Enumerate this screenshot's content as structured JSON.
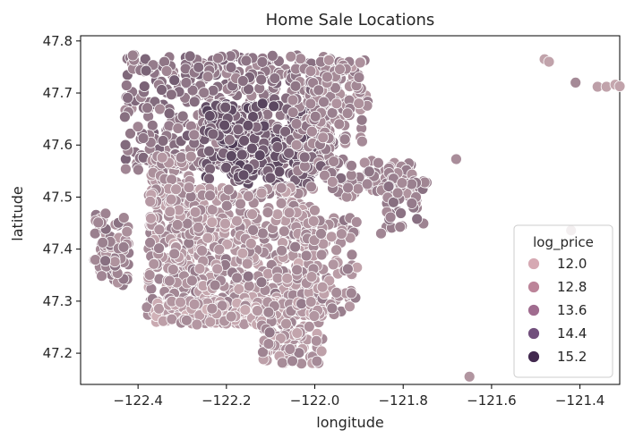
{
  "chart_data": {
    "type": "scatter",
    "title": "Home Sale Locations",
    "xlabel": "longitude",
    "ylabel": "latitude",
    "xlim": [
      -122.53,
      -121.31
    ],
    "ylim": [
      47.14,
      47.81
    ],
    "x_ticks": [
      -122.4,
      -122.2,
      -122.0,
      -121.8,
      -121.6,
      -121.4
    ],
    "x_tick_labels": [
      "−122.4",
      "−122.2",
      "−122.0",
      "−121.8",
      "−121.6",
      "−121.4"
    ],
    "y_ticks": [
      47.2,
      47.3,
      47.4,
      47.5,
      47.6,
      47.7,
      47.8
    ],
    "y_tick_labels": [
      "47.2",
      "47.3",
      "47.4",
      "47.5",
      "47.6",
      "47.7",
      "47.8"
    ],
    "grid": false,
    "legend": {
      "title": "log_price",
      "placement": "lower-right",
      "entries": [
        {
          "label": "12.0",
          "color": "#d6a9b3"
        },
        {
          "label": "12.8",
          "color": "#bc8499"
        },
        {
          "label": "13.6",
          "color": "#a06c8f"
        },
        {
          "label": "14.4",
          "color": "#714f7c"
        },
        {
          "label": "15.2",
          "color": "#42294f"
        }
      ]
    },
    "hue_range": [
      11.2,
      15.9
    ],
    "colors": {
      "hue_low": "#e9c7c9",
      "hue_high": "#2d1e3e"
    },
    "point_clusters": [
      {
        "lon_min": -122.43,
        "lon_max": -121.95,
        "lat_min": 47.55,
        "lat_max": 47.775,
        "count": 520,
        "hue_mean": 13.45
      },
      {
        "lon_min": -122.25,
        "lon_max": -122.0,
        "lat_min": 47.52,
        "lat_max": 47.68,
        "count": 240,
        "hue_mean": 14.3
      },
      {
        "lon_min": -122.05,
        "lon_max": -121.93,
        "lat_min": 47.55,
        "lat_max": 47.76,
        "count": 90,
        "hue_mean": 13.3
      },
      {
        "lon_min": -122.01,
        "lon_max": -121.88,
        "lat_min": 47.6,
        "lat_max": 47.77,
        "count": 90,
        "hue_mean": 13.0
      },
      {
        "lon_min": -121.98,
        "lon_max": -121.78,
        "lat_min": 47.5,
        "lat_max": 47.57,
        "count": 80,
        "hue_mean": 13.1
      },
      {
        "lon_min": -122.37,
        "lon_max": -122.28,
        "lat_min": 47.48,
        "lat_max": 47.58,
        "count": 80,
        "hue_mean": 12.9
      },
      {
        "lon_min": -122.38,
        "lon_max": -122.0,
        "lat_min": 47.27,
        "lat_max": 47.52,
        "count": 720,
        "hue_mean": 12.7
      },
      {
        "lon_min": -122.36,
        "lon_max": -122.06,
        "lat_min": 47.255,
        "lat_max": 47.3,
        "count": 150,
        "hue_mean": 12.4
      },
      {
        "lon_min": -122.12,
        "lon_max": -121.98,
        "lat_min": 47.18,
        "lat_max": 47.3,
        "count": 110,
        "hue_mean": 12.6
      },
      {
        "lon_min": -122.02,
        "lon_max": -121.9,
        "lat_min": 47.27,
        "lat_max": 47.46,
        "count": 90,
        "hue_mean": 12.8
      },
      {
        "lon_min": -122.5,
        "lon_max": -122.42,
        "lat_min": 47.33,
        "lat_max": 47.47,
        "count": 80,
        "hue_mean": 13.1
      },
      {
        "lon_min": -121.85,
        "lon_max": -121.74,
        "lat_min": 47.44,
        "lat_max": 47.54,
        "count": 40,
        "hue_mean": 13.3
      }
    ],
    "outlier_points": [
      {
        "lon": -121.48,
        "lat": 47.765,
        "hue": 12.2
      },
      {
        "lon": -121.47,
        "lat": 47.76,
        "hue": 12.2
      },
      {
        "lon": -121.41,
        "lat": 47.72,
        "hue": 12.9
      },
      {
        "lon": -121.36,
        "lat": 47.712,
        "hue": 12.3
      },
      {
        "lon": -121.34,
        "lat": 47.712,
        "hue": 12.2
      },
      {
        "lon": -121.32,
        "lat": 47.716,
        "hue": 12.1
      },
      {
        "lon": -121.31,
        "lat": 47.713,
        "hue": 12.2
      },
      {
        "lon": -121.65,
        "lat": 47.155,
        "hue": 12.6
      },
      {
        "lon": -121.68,
        "lat": 47.573,
        "hue": 12.8
      },
      {
        "lon": -121.42,
        "lat": 47.436,
        "hue": 12.7
      },
      {
        "lon": -121.9,
        "lat": 47.73,
        "hue": 13.1
      },
      {
        "lon": -121.85,
        "lat": 47.43,
        "hue": 13.0
      }
    ]
  }
}
